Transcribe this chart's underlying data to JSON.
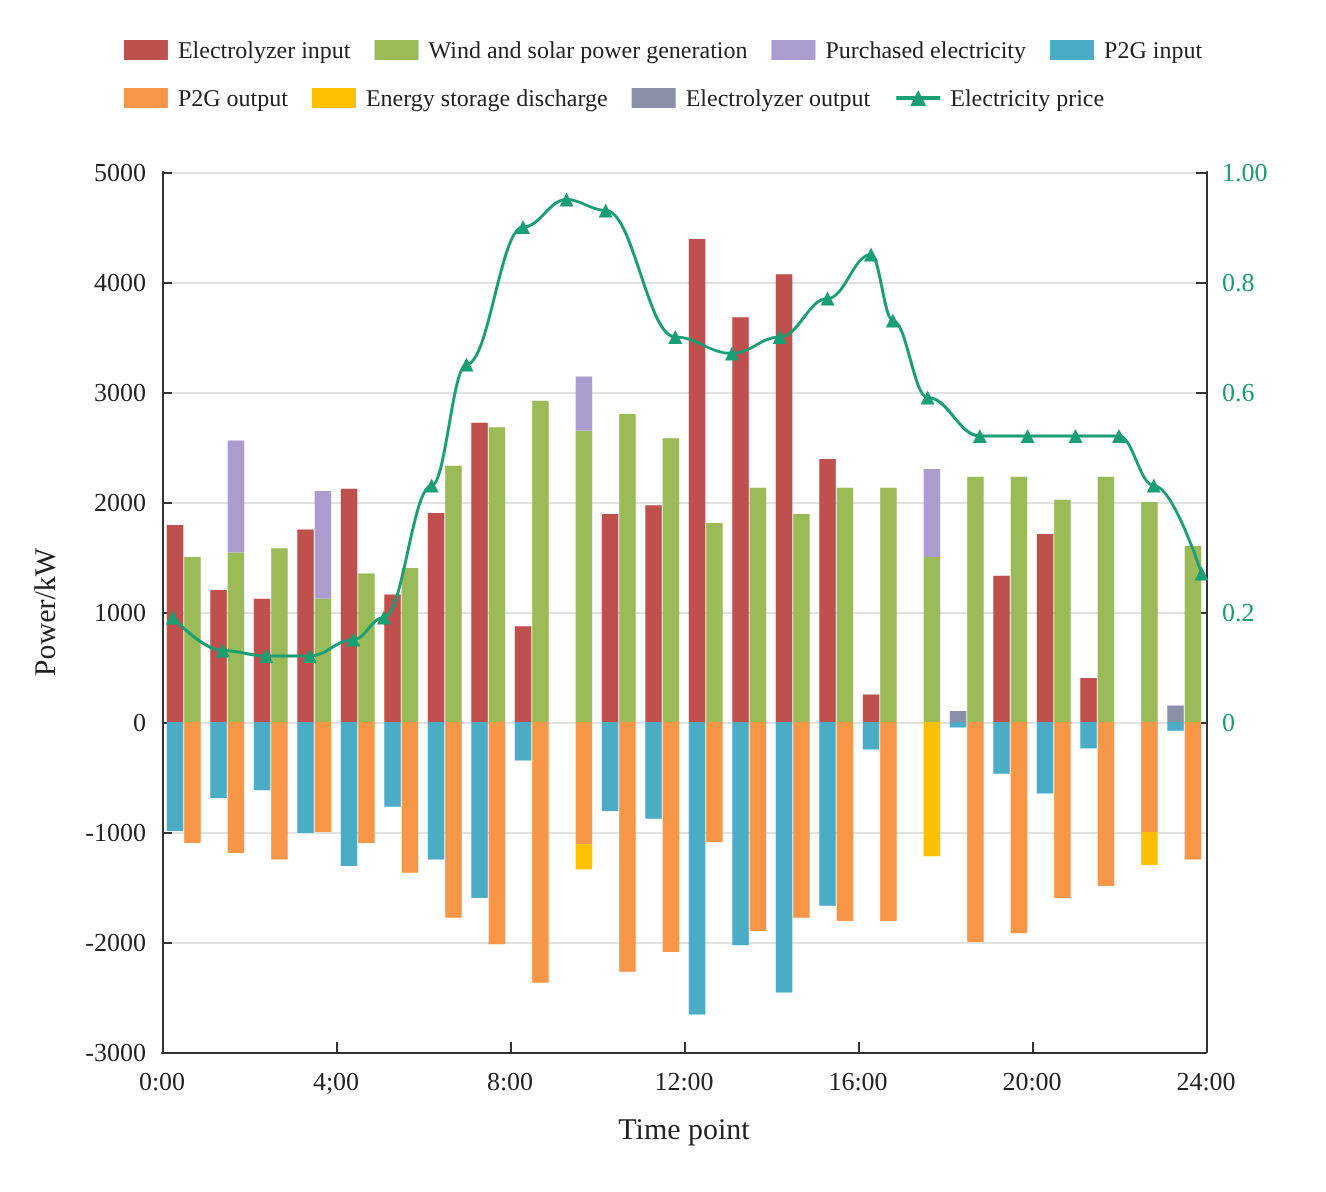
{
  "chart_data": {
    "type": "bar",
    "stacked": true,
    "xlabel": "Time point",
    "ylabel": "Power/kW",
    "x": [
      0.3,
      0.7,
      1.3,
      1.7,
      2.3,
      2.7,
      3.3,
      3.7,
      4.3,
      4.7,
      5.3,
      5.7,
      6.3,
      6.7,
      7.3,
      7.7,
      8.3,
      8.7,
      9.3,
      9.7,
      10.3,
      10.7,
      11.3,
      11.7,
      12.3,
      12.7,
      13.3,
      13.7,
      14.3,
      14.7,
      15.3,
      15.7,
      16.3,
      16.7,
      17.3,
      17.7,
      18.3,
      18.7,
      19.3,
      19.7,
      20.3,
      20.7,
      21.3,
      21.7,
      22.3,
      22.7,
      23.3,
      23.7
    ],
    "series": [
      {
        "name": "Electrolyzer input",
        "color": "#c0504d",
        "values": [
          1790,
          null,
          1200,
          null,
          1120,
          null,
          1750,
          null,
          2120,
          null,
          1160,
          null,
          1900,
          null,
          2720,
          null,
          870,
          null,
          null,
          null,
          1890,
          null,
          1970,
          null,
          4390,
          null,
          3680,
          null,
          4070,
          null,
          2390,
          null,
          250,
          null,
          null,
          null,
          null,
          null,
          1330,
          null,
          1710,
          null,
          400,
          null,
          null,
          null,
          null,
          null
        ]
      },
      {
        "name": "Wind and solar power generation",
        "color": "#9bbb59",
        "values": [
          null,
          1500,
          null,
          1540,
          null,
          1580,
          null,
          1120,
          null,
          1350,
          null,
          1400,
          null,
          2330,
          null,
          2680,
          null,
          2920,
          null,
          2650,
          null,
          2800,
          null,
          2580,
          null,
          1810,
          null,
          2130,
          null,
          1890,
          null,
          2130,
          null,
          2130,
          null,
          1500,
          null,
          2230,
          null,
          2230,
          null,
          2020,
          null,
          2230,
          null,
          2000,
          null,
          1600
        ]
      },
      {
        "name": "Purchased electricity",
        "color": "#ab9ccf",
        "values": [
          null,
          null,
          null,
          1020,
          null,
          null,
          null,
          980,
          null,
          null,
          null,
          null,
          null,
          null,
          null,
          null,
          null,
          null,
          null,
          490,
          null,
          null,
          null,
          null,
          null,
          null,
          null,
          null,
          null,
          null,
          null,
          null,
          null,
          null,
          null,
          800,
          null,
          null,
          null,
          null,
          null,
          null,
          null,
          null,
          null,
          null,
          null,
          null
        ]
      },
      {
        "name": "P2G input",
        "color": "#4bacc6",
        "values": [
          -990,
          null,
          -690,
          null,
          -620,
          null,
          -1010,
          null,
          -1310,
          null,
          -770,
          null,
          -1250,
          null,
          -1600,
          null,
          -350,
          null,
          null,
          null,
          -810,
          null,
          -880,
          null,
          -2660,
          null,
          -2030,
          null,
          -2460,
          null,
          -1670,
          null,
          -250,
          null,
          null,
          null,
          -50,
          null,
          -470,
          null,
          -650,
          null,
          -240,
          null,
          null,
          null,
          -80,
          null
        ]
      },
      {
        "name": "P2G output",
        "color": "#f79646",
        "values": [
          null,
          -1100,
          null,
          -1190,
          null,
          -1250,
          null,
          -1000,
          null,
          -1100,
          null,
          -1370,
          null,
          -1780,
          null,
          -2020,
          null,
          -2370,
          null,
          -1110,
          null,
          -2270,
          null,
          -2090,
          null,
          -1090,
          null,
          -1900,
          null,
          -1780,
          null,
          -1810,
          null,
          -1810,
          null,
          null,
          null,
          -2000,
          null,
          -1920,
          null,
          -1600,
          null,
          -1490,
          null,
          -1000,
          null,
          -1250
        ]
      },
      {
        "name": "Energy storage discharge",
        "color": "#ffc000",
        "values": [
          null,
          null,
          null,
          null,
          null,
          null,
          null,
          null,
          null,
          null,
          null,
          null,
          null,
          null,
          null,
          null,
          null,
          null,
          null,
          -230,
          null,
          null,
          null,
          null,
          null,
          null,
          null,
          null,
          null,
          null,
          null,
          null,
          null,
          null,
          null,
          -1220,
          null,
          null,
          null,
          null,
          null,
          null,
          null,
          null,
          null,
          -300,
          null,
          null
        ]
      },
      {
        "name": "Electrolyzer output",
        "color": "#8b8fa8",
        "values": [
          null,
          null,
          null,
          null,
          null,
          null,
          null,
          null,
          null,
          null,
          null,
          null,
          null,
          null,
          null,
          null,
          null,
          null,
          null,
          null,
          null,
          null,
          null,
          null,
          null,
          null,
          null,
          null,
          null,
          null,
          null,
          null,
          null,
          null,
          null,
          null,
          100,
          null,
          null,
          null,
          null,
          null,
          null,
          null,
          null,
          null,
          150,
          null
        ]
      },
      {
        "name": "Electricity price",
        "type": "line",
        "axis": "y2",
        "color": "#1a9e74",
        "marker": "triangle",
        "x": [
          0.25,
          1.4,
          2.4,
          3.4,
          4.4,
          5.1,
          6.2,
          7.0,
          8.3,
          9.3,
          10.2,
          11.8,
          13.1,
          14.2,
          15.3,
          16.3,
          16.8,
          17.6,
          18.8,
          19.9,
          21.0,
          22.0,
          22.8,
          23.9
        ],
        "values": [
          0.19,
          0.13,
          0.12,
          0.12,
          0.15,
          0.19,
          0.43,
          0.65,
          0.9,
          0.95,
          0.93,
          0.7,
          0.67,
          0.7,
          0.77,
          0.85,
          0.73,
          0.59,
          0.52,
          0.52,
          0.52,
          0.52,
          0.43,
          0.27
        ]
      }
    ],
    "xlim": [
      0,
      24
    ],
    "xticks": [
      {
        "value": 0,
        "label": "0:00"
      },
      {
        "value": 4,
        "label": "4;00"
      },
      {
        "value": 8,
        "label": "8:00"
      },
      {
        "value": 12,
        "label": "12:00"
      },
      {
        "value": 16,
        "label": "16:00"
      },
      {
        "value": 20,
        "label": "20:00"
      },
      {
        "value": 24,
        "label": "24:00"
      }
    ],
    "ylim": [
      -3000,
      5000
    ],
    "yticks": [
      -3000,
      -2000,
      -1000,
      0,
      1000,
      2000,
      3000,
      4000,
      5000
    ],
    "y2lim": [
      -0.6,
      1.0
    ],
    "y2ticks": [
      0,
      0.2,
      0.6,
      0.8,
      {
        "value": 1.0,
        "label": "1.00"
      }
    ],
    "grid": "y",
    "legend": "top"
  }
}
